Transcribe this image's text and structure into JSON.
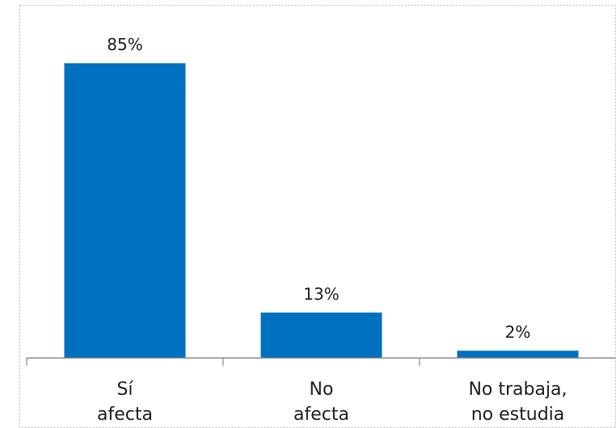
{
  "chart_data": {
    "type": "bar",
    "categories": [
      [
        "Sí",
        "afecta"
      ],
      [
        "No",
        "afecta"
      ],
      [
        "No trabaja,",
        "no estudia"
      ]
    ],
    "values": [
      85,
      13,
      2
    ],
    "value_labels": [
      "85%",
      "13%",
      "2%"
    ],
    "ylim": [
      0,
      100
    ],
    "grid": false,
    "legend": "none",
    "bar_color": "#0070C0"
  }
}
